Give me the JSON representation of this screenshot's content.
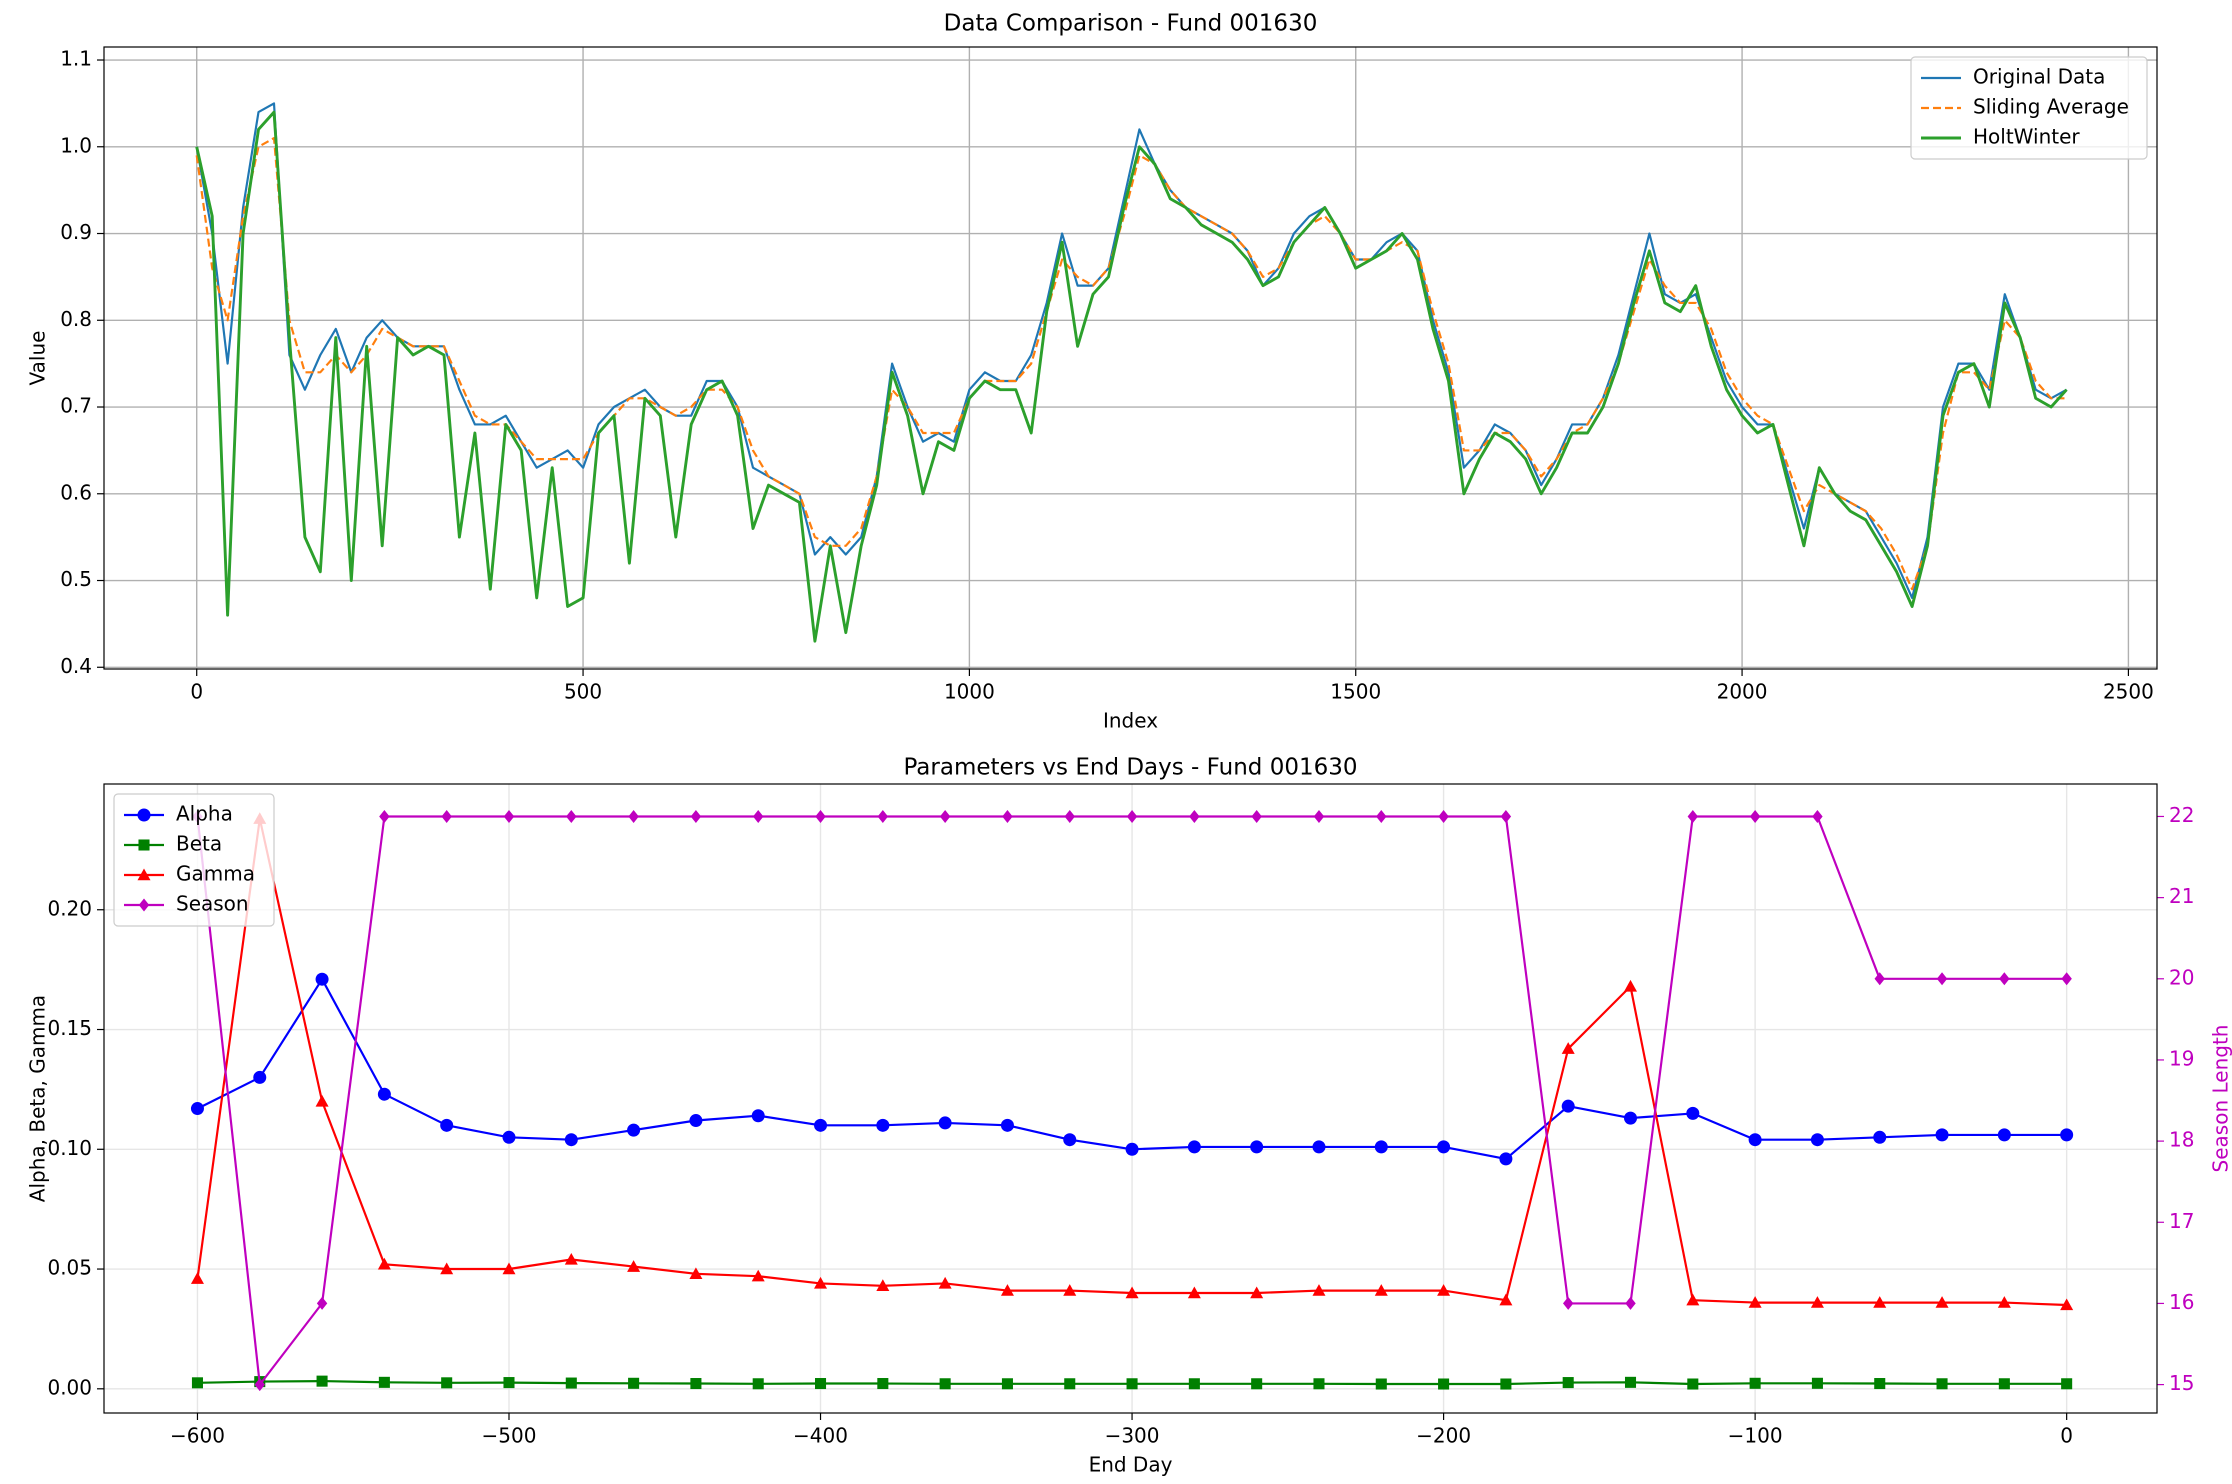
{
  "chart_data": [
    {
      "type": "line",
      "title": "Data Comparison - Fund 001630",
      "xlabel": "Index",
      "ylabel": "Value",
      "x": [
        0,
        20,
        40,
        60,
        80,
        100,
        120,
        140,
        160,
        180,
        200,
        220,
        240,
        260,
        280,
        300,
        320,
        340,
        360,
        380,
        400,
        420,
        440,
        460,
        480,
        500,
        520,
        540,
        560,
        580,
        600,
        620,
        640,
        660,
        680,
        700,
        720,
        740,
        760,
        780,
        800,
        820,
        840,
        860,
        880,
        900,
        920,
        940,
        960,
        980,
        1000,
        1020,
        1040,
        1060,
        1080,
        1100,
        1120,
        1140,
        1160,
        1180,
        1200,
        1220,
        1240,
        1260,
        1280,
        1300,
        1320,
        1340,
        1360,
        1380,
        1400,
        1420,
        1440,
        1460,
        1480,
        1500,
        1520,
        1540,
        1560,
        1580,
        1600,
        1620,
        1640,
        1660,
        1680,
        1700,
        1720,
        1740,
        1760,
        1780,
        1800,
        1820,
        1840,
        1860,
        1880,
        1900,
        1920,
        1940,
        1960,
        1980,
        2000,
        2020,
        2040,
        2060,
        2080,
        2100,
        2120,
        2140,
        2160,
        2180,
        2200,
        2220,
        2240,
        2260,
        2280,
        2300,
        2320,
        2340,
        2360,
        2380,
        2400,
        2420
      ],
      "series": [
        {
          "name": "Original Data",
          "color": "#1f77b4",
          "linestyle": "solid",
          "values": [
            1.0,
            0.9,
            0.75,
            0.93,
            1.04,
            1.05,
            0.76,
            0.72,
            0.76,
            0.79,
            0.74,
            0.78,
            0.8,
            0.78,
            0.77,
            0.77,
            0.77,
            0.72,
            0.68,
            0.68,
            0.69,
            0.66,
            0.63,
            0.64,
            0.65,
            0.63,
            0.68,
            0.7,
            0.71,
            0.72,
            0.7,
            0.69,
            0.69,
            0.73,
            0.73,
            0.7,
            0.63,
            0.62,
            0.61,
            0.6,
            0.53,
            0.55,
            0.53,
            0.55,
            0.62,
            0.75,
            0.7,
            0.66,
            0.67,
            0.66,
            0.72,
            0.74,
            0.73,
            0.73,
            0.76,
            0.82,
            0.9,
            0.84,
            0.84,
            0.86,
            0.94,
            1.02,
            0.98,
            0.95,
            0.93,
            0.92,
            0.91,
            0.9,
            0.88,
            0.84,
            0.86,
            0.9,
            0.92,
            0.93,
            0.9,
            0.87,
            0.87,
            0.89,
            0.9,
            0.88,
            0.8,
            0.74,
            0.63,
            0.65,
            0.68,
            0.67,
            0.65,
            0.61,
            0.64,
            0.68,
            0.68,
            0.71,
            0.76,
            0.83,
            0.9,
            0.83,
            0.82,
            0.83,
            0.78,
            0.73,
            0.7,
            0.68,
            0.68,
            0.62,
            0.56,
            0.63,
            0.6,
            0.59,
            0.58,
            0.55,
            0.52,
            0.48,
            0.55,
            0.7,
            0.75,
            0.75,
            0.72,
            0.83,
            0.78,
            0.72,
            0.71,
            0.72
          ]
        },
        {
          "name": "Sliding Average",
          "color": "#ff7f0e",
          "linestyle": "dashed",
          "values": [
            0.99,
            0.86,
            0.8,
            0.92,
            1.0,
            1.01,
            0.8,
            0.74,
            0.74,
            0.76,
            0.74,
            0.76,
            0.79,
            0.78,
            0.77,
            0.77,
            0.77,
            0.73,
            0.69,
            0.68,
            0.68,
            0.66,
            0.64,
            0.64,
            0.64,
            0.64,
            0.67,
            0.69,
            0.71,
            0.71,
            0.7,
            0.69,
            0.7,
            0.72,
            0.72,
            0.7,
            0.65,
            0.62,
            0.61,
            0.6,
            0.55,
            0.54,
            0.54,
            0.56,
            0.62,
            0.72,
            0.7,
            0.67,
            0.67,
            0.67,
            0.71,
            0.73,
            0.73,
            0.73,
            0.75,
            0.81,
            0.87,
            0.85,
            0.84,
            0.86,
            0.92,
            0.99,
            0.98,
            0.95,
            0.93,
            0.92,
            0.91,
            0.9,
            0.88,
            0.85,
            0.86,
            0.89,
            0.91,
            0.92,
            0.9,
            0.87,
            0.87,
            0.88,
            0.89,
            0.88,
            0.81,
            0.75,
            0.65,
            0.65,
            0.67,
            0.67,
            0.65,
            0.62,
            0.64,
            0.67,
            0.68,
            0.71,
            0.75,
            0.81,
            0.87,
            0.84,
            0.82,
            0.82,
            0.79,
            0.74,
            0.71,
            0.69,
            0.68,
            0.63,
            0.58,
            0.61,
            0.6,
            0.59,
            0.58,
            0.56,
            0.53,
            0.49,
            0.54,
            0.67,
            0.74,
            0.74,
            0.72,
            0.8,
            0.78,
            0.73,
            0.71,
            0.71
          ]
        },
        {
          "name": "HoltWinter",
          "color": "#2ca02c",
          "linestyle": "solid",
          "width": 2,
          "values": [
            1.0,
            0.92,
            0.46,
            0.9,
            1.02,
            1.04,
            0.78,
            0.55,
            0.51,
            0.78,
            0.5,
            0.77,
            0.54,
            0.78,
            0.76,
            0.77,
            0.76,
            0.55,
            0.67,
            0.49,
            0.68,
            0.65,
            0.48,
            0.63,
            0.47,
            0.48,
            0.67,
            0.69,
            0.52,
            0.71,
            0.69,
            0.55,
            0.68,
            0.72,
            0.73,
            0.69,
            0.56,
            0.61,
            0.6,
            0.59,
            0.43,
            0.54,
            0.44,
            0.54,
            0.61,
            0.74,
            0.69,
            0.6,
            0.66,
            0.65,
            0.71,
            0.73,
            0.72,
            0.72,
            0.67,
            0.81,
            0.89,
            0.77,
            0.83,
            0.85,
            0.93,
            1.0,
            0.98,
            0.94,
            0.93,
            0.91,
            0.9,
            0.89,
            0.87,
            0.84,
            0.85,
            0.89,
            0.91,
            0.93,
            0.9,
            0.86,
            0.87,
            0.88,
            0.9,
            0.87,
            0.79,
            0.73,
            0.6,
            0.64,
            0.67,
            0.66,
            0.64,
            0.6,
            0.63,
            0.67,
            0.67,
            0.7,
            0.75,
            0.82,
            0.88,
            0.82,
            0.81,
            0.84,
            0.77,
            0.72,
            0.69,
            0.67,
            0.68,
            0.61,
            0.54,
            0.63,
            0.6,
            0.58,
            0.57,
            0.54,
            0.51,
            0.47,
            0.54,
            0.69,
            0.74,
            0.75,
            0.7,
            0.82,
            0.78,
            0.71,
            0.7,
            0.72
          ]
        }
      ],
      "xlim": [
        -120,
        2537
      ],
      "ylim": [
        0.398,
        1.115
      ],
      "xticks": [
        0,
        500,
        1000,
        1500,
        2000,
        2500
      ],
      "yticks": [
        0.4,
        0.5,
        0.6,
        0.7,
        0.8,
        0.9,
        {
          "value": 1,
          "label": "1.0"
        },
        1.1
      ],
      "grid": true,
      "grid_color": "#b0b0b0",
      "legend": "upper right"
    },
    {
      "type": "line",
      "title": "Parameters vs End Days - Fund 001630",
      "xlabel": "End Day",
      "ylabel": "Alpha, Beta, Gamma",
      "y2label": "Season Length",
      "y2color": "#bf00bf",
      "x": [
        -600,
        -580,
        -560,
        -540,
        -520,
        -500,
        -480,
        -460,
        -440,
        -420,
        -400,
        -380,
        -360,
        -340,
        -320,
        -300,
        -280,
        -260,
        -240,
        -220,
        -200,
        -180,
        -160,
        -140,
        -120,
        -100,
        -80,
        -60,
        -40,
        -20,
        0
      ],
      "series": [
        {
          "name": "Alpha",
          "color": "#0000ff",
          "marker": "circle",
          "values": [
            0.117,
            0.13,
            0.171,
            0.123,
            0.11,
            0.105,
            0.104,
            0.108,
            0.112,
            0.114,
            0.11,
            0.11,
            0.111,
            0.11,
            0.104,
            0.1,
            0.101,
            0.101,
            0.101,
            0.101,
            0.101,
            0.096,
            0.118,
            0.113,
            0.115,
            0.104,
            0.104,
            0.105,
            0.106,
            0.106,
            0.106
          ]
        },
        {
          "name": "Beta",
          "color": "#008000",
          "marker": "square",
          "values": [
            0.0025,
            0.003,
            0.0032,
            0.0027,
            0.0025,
            0.0026,
            0.0024,
            0.0023,
            0.0022,
            0.0021,
            0.0022,
            0.0022,
            0.0021,
            0.0021,
            0.0021,
            0.0021,
            0.0021,
            0.0021,
            0.0021,
            0.002,
            0.002,
            0.002,
            0.0026,
            0.0027,
            0.002,
            0.0023,
            0.0023,
            0.0022,
            0.0021,
            0.0021,
            0.0021
          ]
        },
        {
          "name": "Gamma",
          "color": "#ff0000",
          "marker": "triangle",
          "values": [
            0.046,
            0.238,
            0.12,
            0.052,
            0.05,
            0.05,
            0.054,
            0.051,
            0.048,
            0.047,
            0.044,
            0.043,
            0.044,
            0.041,
            0.041,
            0.04,
            0.04,
            0.04,
            0.041,
            0.041,
            0.041,
            0.037,
            0.142,
            0.168,
            0.037,
            0.036,
            0.036,
            0.036,
            0.036,
            0.036,
            0.035
          ]
        },
        {
          "name": "Season",
          "color": "#bf00bf",
          "marker": "diamond",
          "axis": "y2",
          "values": [
            22,
            15,
            16,
            22,
            22,
            22,
            22,
            22,
            22,
            22,
            22,
            22,
            22,
            22,
            22,
            22,
            22,
            22,
            22,
            22,
            22,
            22,
            16,
            16,
            22,
            22,
            22,
            20,
            20,
            20,
            20
          ]
        }
      ],
      "xlim": [
        -630,
        29
      ],
      "ylim": [
        -0.0101,
        0.2525
      ],
      "y2lim": [
        14.65,
        22.4
      ],
      "xticks": [
        {
          "value": -600,
          "label": "−600"
        },
        {
          "value": -500,
          "label": "−500"
        },
        {
          "value": -400,
          "label": "−400"
        },
        {
          "value": -300,
          "label": "−300"
        },
        {
          "value": -200,
          "label": "−200"
        },
        {
          "value": -100,
          "label": "−100"
        },
        0
      ],
      "yticks": [
        {
          "value": 0,
          "label": "0.00"
        },
        {
          "value": 0.05,
          "label": "0.05"
        },
        {
          "value": 0.1,
          "label": "0.10"
        },
        {
          "value": 0.15,
          "label": "0.15"
        },
        {
          "value": 0.2,
          "label": "0.20"
        }
      ],
      "y2ticks": [
        15,
        16,
        17,
        18,
        19,
        20,
        21,
        22
      ],
      "grid": true,
      "grid_color": "#e6e6e6",
      "legend": "upper left"
    }
  ]
}
